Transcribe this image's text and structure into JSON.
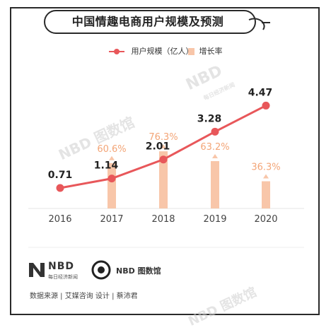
{
  "title": "中国情趣电商用户规模及预测",
  "legend": {
    "line_label": "用户规模（亿人）",
    "bar_label": "增长率"
  },
  "colors": {
    "line": "#e8575a",
    "bar": "#f8c6a9",
    "bar_label": "#f3a577",
    "axis_text": "#444444"
  },
  "chart_data": {
    "type": "bar+line",
    "categories": [
      "2016",
      "2017",
      "2018",
      "2019",
      "2020"
    ],
    "series": [
      {
        "name": "用户规模（亿人）",
        "type": "line",
        "values": [
          0.71,
          1.14,
          2.01,
          3.28,
          4.47
        ],
        "labels": [
          "0.71",
          "1.14",
          "2.01",
          "3.28",
          "4.47"
        ]
      },
      {
        "name": "增长率",
        "type": "bar",
        "values": [
          null,
          60.6,
          76.3,
          63.2,
          36.3
        ],
        "labels": [
          "",
          "60.6%",
          "76.3%",
          "63.2%",
          "36.3%"
        ]
      }
    ],
    "legend_position": "top",
    "grid": false
  },
  "footer": {
    "logo1_text": "NBD",
    "logo1_sub": "每日经济新闻",
    "logo2_text": "NBD",
    "logo2_cn": "图数馆",
    "source": "数据来源 | 艾媒咨询  设计 | 蔡沛君"
  },
  "watermark": {
    "mark1": "NBD",
    "mark1_sub": "每日经济新闻",
    "mark2": "NBD 图数馆"
  }
}
